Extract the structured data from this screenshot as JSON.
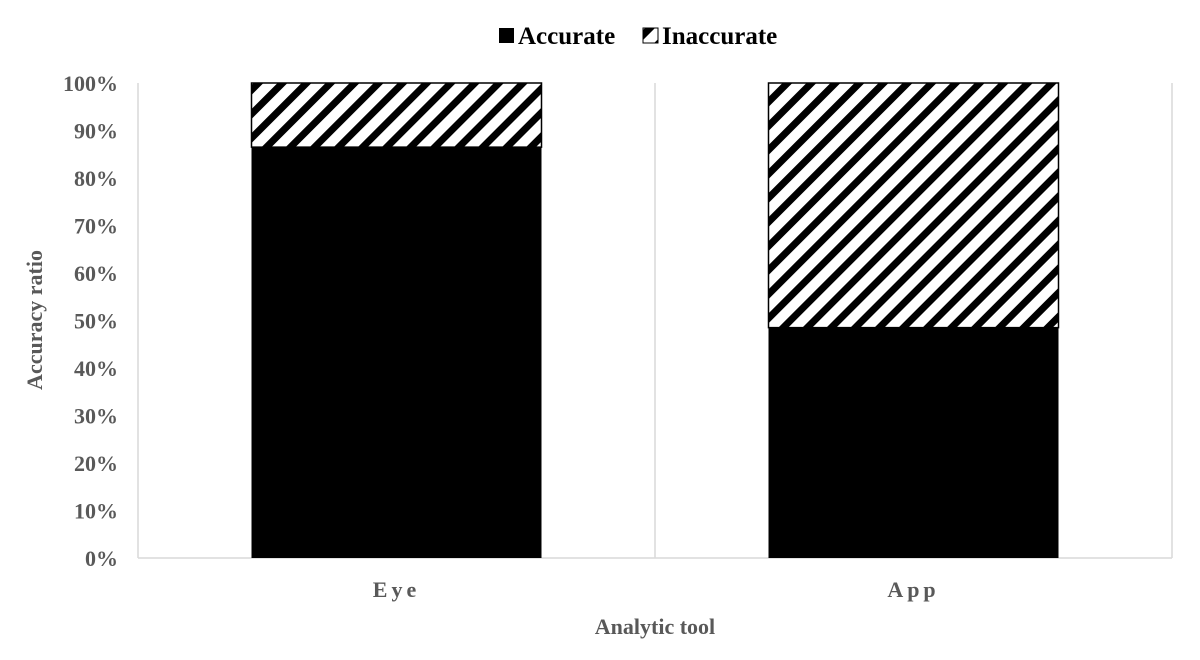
{
  "chart_data": {
    "type": "bar",
    "stacked": true,
    "categories": [
      "Eye",
      "App"
    ],
    "series": [
      {
        "name": "Accurate",
        "values": [
          86.5,
          48.5
        ],
        "fill": "solid",
        "color": "#000000"
      },
      {
        "name": "Inaccurate",
        "values": [
          13.5,
          51.5
        ],
        "fill": "diagonal-hatch",
        "color": "#000000"
      }
    ],
    "ylim": [
      0,
      100
    ],
    "yticks": [
      "0%",
      "10%",
      "20%",
      "30%",
      "40%",
      "50%",
      "60%",
      "70%",
      "80%",
      "90%",
      "100%"
    ],
    "ylabel": "Accuracy ratio",
    "xlabel": "Analytic tool",
    "legend": "top",
    "grid": false,
    "colors": {
      "axis": "#d9d9d9",
      "text": "#595959",
      "bar": "#000000"
    }
  }
}
